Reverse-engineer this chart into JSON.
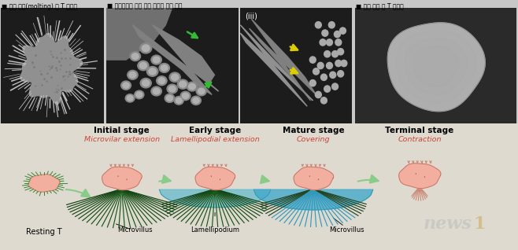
{
  "title_left": "■ 허물 벗기(molting) 전 T 임파구",
  "title_middle": "■ 미세동기를 통해 허물 벗기를 하는 모습",
  "title_right": "■ 허물 벗은 후 T 임파구",
  "bg_color": "#c8c8c8",
  "panel_bg": "#1c1c1c",
  "diagram_bg": "#dedad0",
  "subtitle_color": "#cc4433",
  "arrow_color": "#88cc88",
  "iii_label": "(iii)",
  "green_arrow_color": "#33bb33",
  "yellow_arrow_color": "#ddcc00",
  "news1_color": "#aaaaaa",
  "stage_labels": [
    "Initial stage",
    "Early stage",
    "Mature stage",
    "Terminal stage"
  ],
  "stage_subtitles": [
    "Microvilar extension",
    "Lamellipodial extension",
    "Covering",
    "Contraction"
  ],
  "bottom_labels": [
    "Microvillus",
    "Lamellipodium",
    "Microvillus"
  ],
  "resting_label": "Resting T"
}
